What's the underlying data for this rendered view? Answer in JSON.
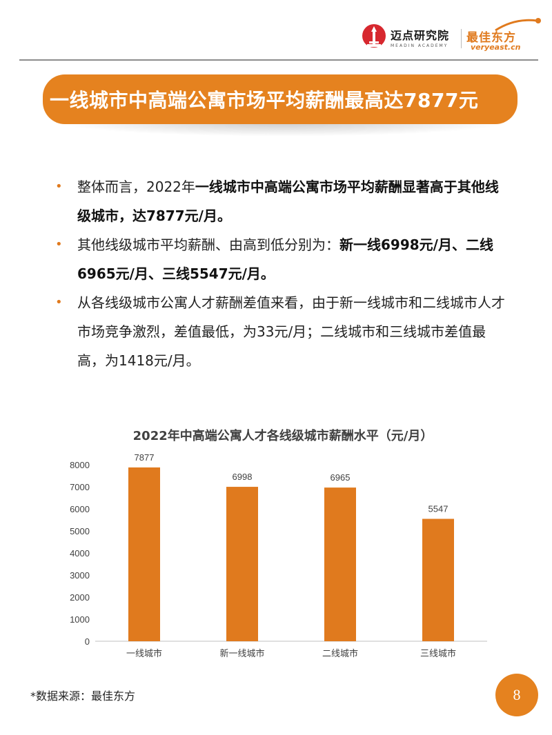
{
  "header": {
    "logo1_name": "迈点研究院",
    "logo1_sub": "MEADIN ACADEMY",
    "logo2_name": "最佳东方",
    "logo2_url": "veryeast.cn"
  },
  "banner": {
    "title": "一线城市中高端公寓市场平均薪酬最高达7877元"
  },
  "bullets": [
    {
      "plain1": "整体而言，2022年",
      "bold1": "一线城市中高端公寓市场平均薪酬显著高于其他线级城市，达7877元/月。"
    },
    {
      "plain1": "其他线级城市平均薪酬、由高到低分别为：",
      "bold1": "新一线6998元/月、二线6965元/月、三线5547元/月。"
    },
    {
      "plain1": "从各线级城市公寓人才薪酬差值来看，由于新一线城市和二线城市人才市场竞争激烈，差值最低，为33元/月；二线城市和三线城市差值最高，为1418元/月。"
    }
  ],
  "chart_data": {
    "type": "bar",
    "title": "2022年中高端公寓人才各线级城市薪酬水平（元/月）",
    "categories": [
      "一线城市",
      "新一线城市",
      "二线城市",
      "三线城市"
    ],
    "values": [
      7877,
      6998,
      6965,
      5547
    ],
    "ylim": [
      0,
      8000
    ],
    "yticks": [
      0,
      1000,
      2000,
      3000,
      4000,
      5000,
      6000,
      7000,
      8000
    ],
    "grid": false,
    "bar_color": "#e07a1e",
    "xlabel": "",
    "ylabel": ""
  },
  "footer": {
    "source": "*数据来源：最佳东方",
    "page_number": "8"
  },
  "colors": {
    "accent": "#e5821f"
  }
}
